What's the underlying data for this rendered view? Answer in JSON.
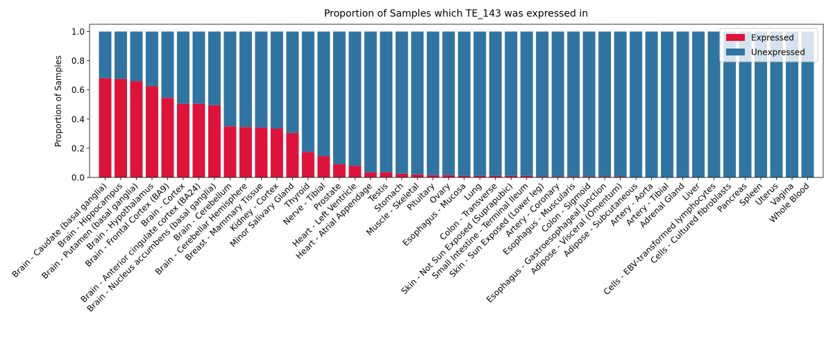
{
  "chart_data": {
    "type": "bar",
    "stacked": true,
    "title": "Proportion of Samples which TE_143 was expressed in",
    "xlabel": "",
    "ylabel": "Proportion of Samples",
    "ylim": [
      0,
      1.05
    ],
    "yticks": [
      0.0,
      0.2,
      0.4,
      0.6,
      0.8,
      1.0
    ],
    "ytick_labels": [
      "0.0",
      "0.2",
      "0.4",
      "0.6",
      "0.8",
      "1.0"
    ],
    "grid": false,
    "legend_position": "top-right",
    "categories": [
      "Brain - Caudate (basal ganglia)",
      "Brain - Hippocampus",
      "Brain - Putamen (basal ganglia)",
      "Brain - Hypothalamus",
      "Brain - Frontal Cortex (BA9)",
      "Brain - Cortex",
      "Brain - Anterior cingulate cortex (BA24)",
      "Brain - Nucleus accumbens (basal ganglia)",
      "Brain - Cerebellum",
      "Brain - Cerebellar Hemisphere",
      "Breast - Mammary Tissue",
      "Kidney - Cortex",
      "Minor Salivary Gland",
      "Thyroid",
      "Nerve - Tibial",
      "Prostate",
      "Heart - Left Ventricle",
      "Heart - Atrial Appendage",
      "Testis",
      "Stomach",
      "Muscle - Skeletal",
      "Pituitary",
      "Ovary",
      "Esophagus - Mucosa",
      "Lung",
      "Colon - Transverse",
      "Skin - Not Sun Exposed (Suprapubic)",
      "Small Intestine - Terminal Ileum",
      "Skin - Sun Exposed (Lower leg)",
      "Artery - Coronary",
      "Esophagus - Muscularis",
      "Colon - Sigmoid",
      "Esophagus - Gastroesophageal Junction",
      "Adipose - Visceral (Omentum)",
      "Adipose - Subcutaneous",
      "Artery - Aorta",
      "Artery - Tibial",
      "Adrenal Gland",
      "Liver",
      "Cells - EBV-transformed lymphocytes",
      "Cells - Cultured fibroblasts",
      "Pancreas",
      "Spleen",
      "Uterus",
      "Vagina",
      "Whole Blood"
    ],
    "series": [
      {
        "name": "Expressed",
        "color": "#dc143c",
        "values": [
          0.68,
          0.675,
          0.66,
          0.625,
          0.545,
          0.505,
          0.505,
          0.495,
          0.35,
          0.345,
          0.34,
          0.335,
          0.305,
          0.175,
          0.145,
          0.09,
          0.08,
          0.035,
          0.035,
          0.025,
          0.02,
          0.015,
          0.015,
          0.01,
          0.01,
          0.01,
          0.01,
          0.01,
          0.005,
          0.005,
          0.005,
          0.005,
          0.005,
          0.005,
          0.0,
          0.0,
          0.0,
          0.0,
          0.0,
          0.0,
          0.0,
          0.0,
          0.0,
          0.0,
          0.0,
          0.0
        ]
      },
      {
        "name": "Unexpressed",
        "color": "#3274a1",
        "values": [
          0.32,
          0.325,
          0.34,
          0.375,
          0.455,
          0.495,
          0.495,
          0.505,
          0.65,
          0.655,
          0.66,
          0.665,
          0.695,
          0.825,
          0.855,
          0.91,
          0.92,
          0.965,
          0.965,
          0.975,
          0.98,
          0.985,
          0.985,
          0.99,
          0.99,
          0.99,
          0.99,
          0.99,
          0.995,
          0.995,
          0.995,
          0.995,
          0.995,
          0.995,
          1.0,
          1.0,
          1.0,
          1.0,
          1.0,
          1.0,
          1.0,
          1.0,
          1.0,
          1.0,
          1.0,
          1.0
        ]
      }
    ]
  }
}
